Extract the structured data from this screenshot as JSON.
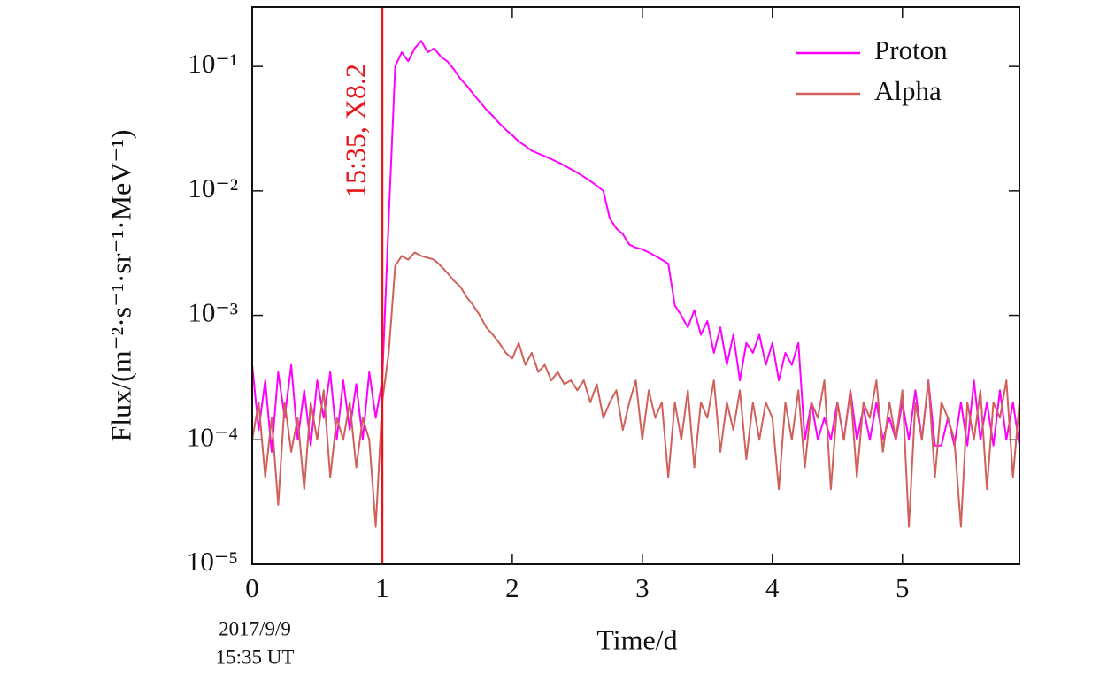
{
  "chart_data": {
    "type": "line",
    "xlabel": "Time/d",
    "ylabel": "Flux/(m⁻²·s⁻¹·sr⁻¹·MeV⁻¹)",
    "annotations": [
      "2017/9/9",
      "15:35 UT"
    ],
    "event": {
      "x": 1,
      "label": "15:35, X8.2",
      "color": "#e8141c"
    },
    "log_y": true,
    "legend": "upper right",
    "xlim": [
      0,
      5.9
    ],
    "ylim": [
      1e-05,
      0.3
    ],
    "xticks": [
      0,
      1,
      2,
      3,
      4,
      5
    ],
    "yticks": [
      {
        "value": 1e-05,
        "label": "10⁻⁵"
      },
      {
        "value": 0.0001,
        "label": "10⁻⁴"
      },
      {
        "value": 0.001,
        "label": "10⁻³"
      },
      {
        "value": 0.01,
        "label": "10⁻²"
      },
      {
        "value": 0.1,
        "label": "10⁻¹"
      }
    ],
    "x": [
      0,
      0.05,
      0.1,
      0.15,
      0.2,
      0.25,
      0.3,
      0.35,
      0.4,
      0.45,
      0.5,
      0.55,
      0.6,
      0.65,
      0.7,
      0.75,
      0.8,
      0.85,
      0.9,
      0.95,
      1,
      1.05,
      1.1,
      1.15,
      1.2,
      1.25,
      1.3,
      1.35,
      1.4,
      1.45,
      1.5,
      1.55,
      1.6,
      1.65,
      1.7,
      1.75,
      1.8,
      1.85,
      1.9,
      1.95,
      2,
      2.05,
      2.1,
      2.15,
      2.2,
      2.25,
      2.3,
      2.35,
      2.4,
      2.45,
      2.5,
      2.55,
      2.6,
      2.65,
      2.7,
      2.75,
      2.8,
      2.85,
      2.9,
      2.95,
      3,
      3.05,
      3.1,
      3.15,
      3.2,
      3.25,
      3.3,
      3.35,
      3.4,
      3.45,
      3.5,
      3.55,
      3.6,
      3.65,
      3.7,
      3.75,
      3.8,
      3.85,
      3.9,
      3.95,
      4,
      4.05,
      4.1,
      4.15,
      4.2,
      4.25,
      4.3,
      4.35,
      4.4,
      4.45,
      4.5,
      4.55,
      4.6,
      4.65,
      4.7,
      4.75,
      4.8,
      4.85,
      4.9,
      4.95,
      5,
      5.05,
      5.1,
      5.15,
      5.2,
      5.25,
      5.3,
      5.35,
      5.4,
      5.45,
      5.5,
      5.55,
      5.6,
      5.65,
      5.7,
      5.75,
      5.8,
      5.85,
      5.9
    ],
    "series": [
      {
        "name": "Proton",
        "color": "#ff00ff",
        "values": [
          0.0004,
          0.00012,
          0.0003,
          8e-05,
          0.00035,
          0.00015,
          0.0004,
          0.0001,
          0.00025,
          9e-05,
          0.0003,
          0.00015,
          0.00035,
          0.0001,
          0.0003,
          0.00012,
          0.00028,
          0.0001,
          0.00035,
          0.00015,
          0.0003,
          0.006,
          0.1,
          0.13,
          0.11,
          0.14,
          0.16,
          0.13,
          0.14,
          0.12,
          0.11,
          0.095,
          0.08,
          0.07,
          0.06,
          0.052,
          0.045,
          0.04,
          0.035,
          0.031,
          0.028,
          0.025,
          0.023,
          0.021,
          0.02,
          0.019,
          0.018,
          0.017,
          0.016,
          0.015,
          0.014,
          0.013,
          0.012,
          0.011,
          0.01,
          0.006,
          0.005,
          0.0045,
          0.0037,
          0.0035,
          0.0034,
          0.0032,
          0.003,
          0.0028,
          0.0026,
          0.0012,
          0.001,
          0.0008,
          0.0011,
          0.0007,
          0.0009,
          0.0005,
          0.0008,
          0.0004,
          0.0007,
          0.0003,
          0.0006,
          0.0005,
          0.0007,
          0.0004,
          0.0006,
          0.0003,
          0.0005,
          0.0004,
          0.0006,
          0.0001,
          0.0002,
          0.0001,
          0.00015,
          0.0001,
          0.0002,
          0.0001,
          0.00025,
          0.0001,
          0.00018,
          0.0001,
          0.0002,
          0.0001,
          0.00015,
          0.0001,
          0.0002,
          0.0001,
          0.00025,
          0.0001,
          0.0003,
          9e-05,
          9e-05,
          0.00015,
          9e-05,
          0.0002,
          9e-05,
          0.0003,
          0.0001,
          0.0002,
          9e-05,
          0.00025,
          0.0001,
          0.0002,
          9e-05
        ]
      },
      {
        "name": "Alpha",
        "color": "#d0605a",
        "values": [
          0.0001,
          0.0002,
          5e-05,
          0.00015,
          3e-05,
          0.0002,
          8e-05,
          0.00015,
          4e-05,
          0.0002,
          0.0001,
          0.00025,
          5e-05,
          0.00015,
          0.0001,
          0.0002,
          6e-05,
          0.00015,
          0.0001,
          2e-05,
          0.0002,
          0.0005,
          0.0025,
          0.003,
          0.0028,
          0.0032,
          0.003,
          0.0029,
          0.0028,
          0.0025,
          0.0022,
          0.0019,
          0.0017,
          0.0014,
          0.0012,
          0.001,
          0.0008,
          0.0007,
          0.0006,
          0.0005,
          0.00045,
          0.0006,
          0.0004,
          0.0005,
          0.00035,
          0.0004,
          0.0003,
          0.00035,
          0.00028,
          0.0003,
          0.00025,
          0.0003,
          0.0002,
          0.00028,
          0.00015,
          0.0002,
          0.00025,
          0.00012,
          0.0002,
          0.0003,
          0.0001,
          0.00025,
          0.00015,
          0.0002,
          5e-05,
          0.0002,
          0.0001,
          0.00025,
          6e-05,
          0.0002,
          0.00015,
          0.0003,
          8e-05,
          0.0002,
          0.00012,
          0.00025,
          7e-05,
          0.0002,
          0.0001,
          0.0002,
          0.00015,
          4e-05,
          0.0002,
          0.0001,
          0.00025,
          6e-05,
          0.0002,
          0.00015,
          0.0003,
          4e-05,
          0.0002,
          0.0001,
          0.00025,
          5e-05,
          0.0002,
          0.00015,
          0.0003,
          8e-05,
          0.0002,
          0.0001,
          0.00025,
          2e-05,
          0.0002,
          0.0001,
          0.0003,
          5e-05,
          0.0002,
          0.00015,
          0.0001,
          2e-05,
          0.0002,
          0.0001,
          0.00025,
          4e-05,
          0.0002,
          0.00015,
          0.0003,
          5e-05,
          0.0002
        ]
      }
    ]
  }
}
